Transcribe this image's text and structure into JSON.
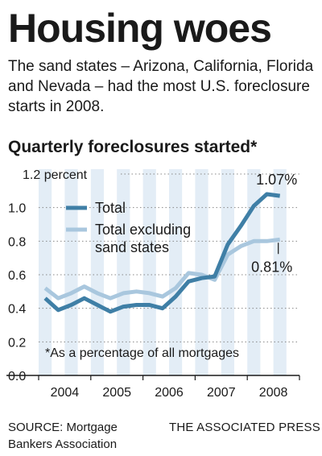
{
  "headline": "Housing woes",
  "intro": "The sand states – Arizona, California, Florida and Nevada – had the most U.S. foreclosure starts in 2008.",
  "source": "SOURCE: Mortgage Bankers Association",
  "credit": "THE ASSOCIATED PRESS",
  "colors": {
    "total": "#3f7fa6",
    "excluding": "#a9c7de",
    "band": "#e3edf6",
    "grid": "#888888"
  },
  "chart_data": {
    "type": "line",
    "title": "Quarterly foreclosures started*",
    "footnote": "*As a percentage of all mortgages",
    "ylim": [
      0,
      1.2
    ],
    "y_ticks": [
      {
        "value": 0.0,
        "label": "0.0"
      },
      {
        "value": 0.2,
        "label": "0.2"
      },
      {
        "value": 0.4,
        "label": "0.4"
      },
      {
        "value": 0.6,
        "label": "0.6"
      },
      {
        "value": 0.8,
        "label": "0.8"
      },
      {
        "value": 1.0,
        "label": "1.0"
      },
      {
        "value": 1.2,
        "label": "1.2 percent"
      }
    ],
    "x_labels": [
      "2004",
      "2005",
      "2006",
      "2007",
      "2008"
    ],
    "quarters_per_year": 4,
    "grid": true,
    "legend_position": "top-left",
    "series": [
      {
        "name": "Total",
        "color_key": "total",
        "values": [
          0.46,
          0.39,
          0.42,
          0.46,
          0.42,
          0.38,
          0.41,
          0.42,
          0.42,
          0.4,
          0.47,
          0.56,
          0.58,
          0.59,
          0.78,
          0.89,
          1.01,
          1.08,
          1.07
        ],
        "end_label": "1.07%"
      },
      {
        "name": "Total excluding sand states",
        "name_lines": [
          "Total excluding",
          "sand states"
        ],
        "color_key": "excluding",
        "values": [
          0.52,
          0.46,
          0.49,
          0.53,
          0.49,
          0.46,
          0.49,
          0.5,
          0.49,
          0.47,
          0.52,
          0.61,
          0.6,
          0.57,
          0.72,
          0.77,
          0.8,
          0.8,
          0.81
        ],
        "end_label": "0.81%"
      }
    ]
  }
}
